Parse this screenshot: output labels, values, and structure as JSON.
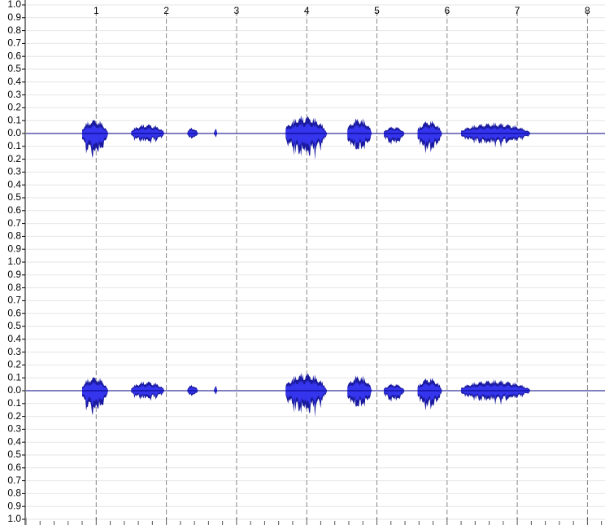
{
  "time_ruler": {
    "labels": [
      "1",
      "2",
      "3",
      "4",
      "5",
      "6",
      "7",
      "8"
    ]
  },
  "amplitude_scale": {
    "labels": [
      "1.0",
      "0.9",
      "0.8",
      "0.7",
      "0.6",
      "0.5",
      "0.4",
      "0.3",
      "0.2",
      "0.1",
      "0.0",
      "0.1",
      "0.2",
      "0.3",
      "0.4",
      "0.5",
      "0.6",
      "0.7",
      "0.8",
      "0.9",
      "1.0",
      "0.9",
      "0.8",
      "0.7",
      "0.6",
      "0.5",
      "0.4",
      "0.3",
      "0.2",
      "0.1",
      "0.0",
      "0.1",
      "0.2",
      "0.3",
      "0.4",
      "0.5",
      "0.6",
      "0.7",
      "0.8",
      "0.9",
      "1.0"
    ]
  }
}
